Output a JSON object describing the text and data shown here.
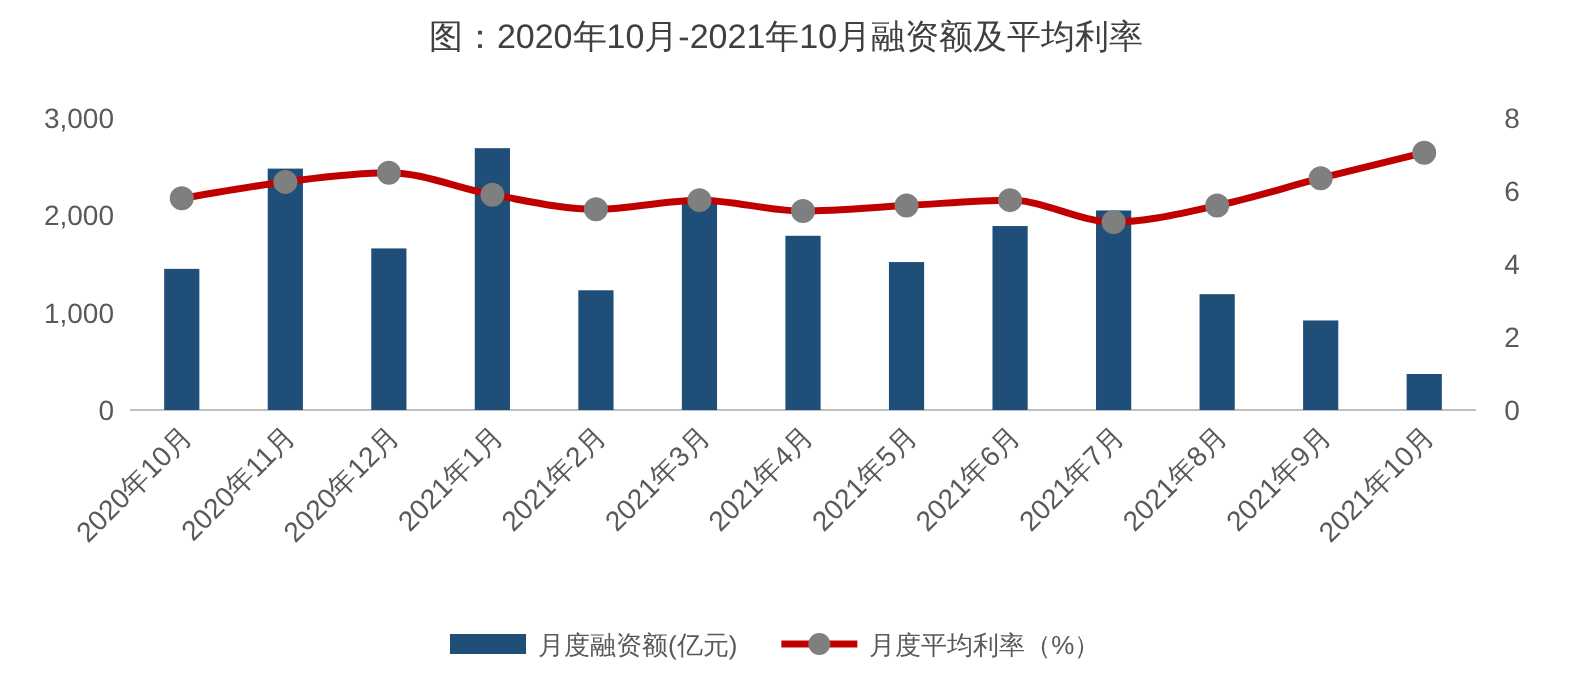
{
  "chart_data": {
    "type": "bar",
    "title": "图：2020年10月-2021年10月融资额及平均利率",
    "categories": [
      "2020年10月",
      "2020年11月",
      "2020年12月",
      "2021年1月",
      "2021年2月",
      "2021年3月",
      "2021年4月",
      "2021年5月",
      "2021年6月",
      "2021年7月",
      "2021年8月",
      "2021年9月",
      "2021年10月"
    ],
    "series": [
      {
        "name": "月度融资额(亿元)",
        "color": "#1f4e79",
        "values": [
          1450,
          2480,
          1660,
          2690,
          1230,
          2150,
          1790,
          1520,
          1890,
          2050,
          1190,
          920,
          370
        ]
      },
      {
        "name": "月度平均利率（%）",
        "type": "line",
        "axis": "y2",
        "color": "#c00000",
        "marker": "circle",
        "values": [
          5.8,
          6.25,
          6.5,
          5.9,
          5.5,
          5.75,
          5.45,
          5.6,
          5.75,
          5.15,
          5.6,
          6.35,
          7.05
        ]
      }
    ],
    "ylim": [
      0,
      3000
    ],
    "yticks": [
      0,
      {
        "value": 1000,
        "label": "1,000"
      },
      {
        "value": 2000,
        "label": "2,000"
      },
      {
        "value": 3000,
        "label": "3,000"
      }
    ],
    "y2lim": [
      0,
      8
    ],
    "y2ticks": [
      0,
      2,
      4,
      6,
      8
    ],
    "legend": "bottom"
  }
}
